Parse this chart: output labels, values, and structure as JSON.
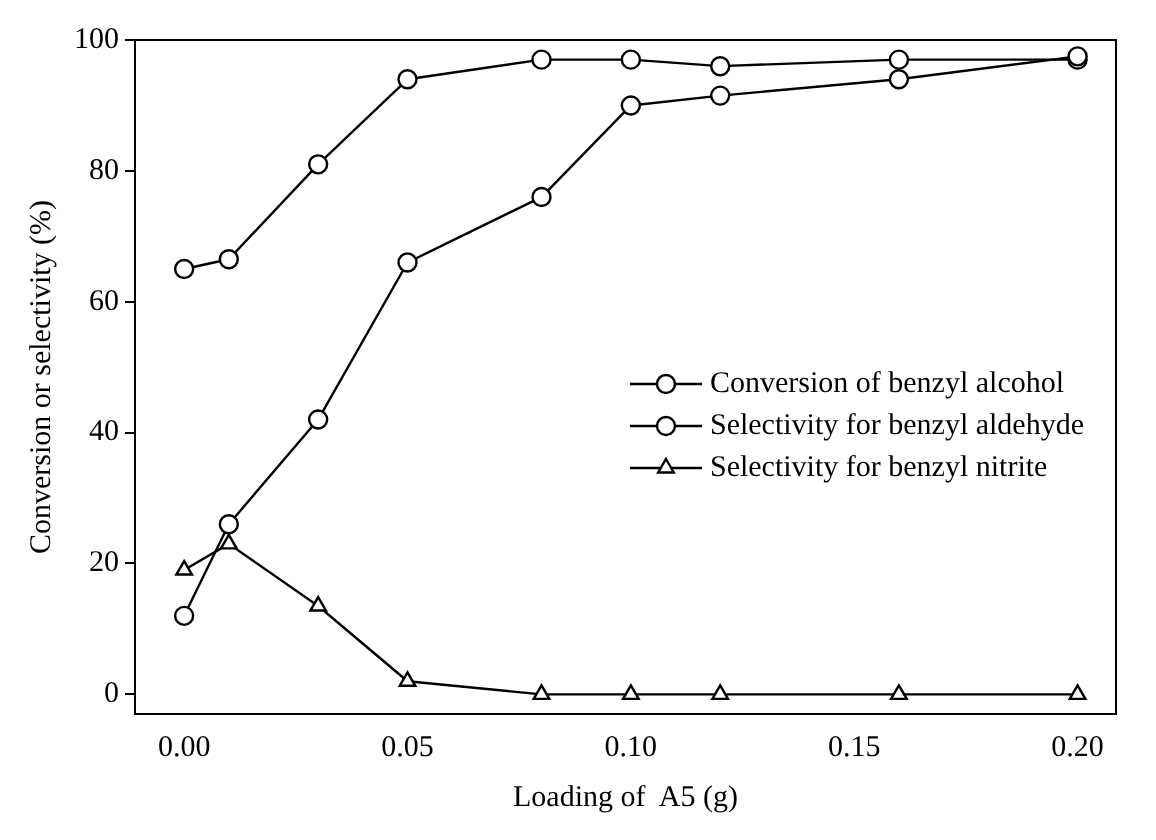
{
  "chart_data": {
    "type": "line",
    "xlabel": "Loading of  A5 (g)",
    "ylabel": "Conversion or selectivity (%)",
    "x": [
      0,
      0.01,
      0.03,
      0.05,
      0.08,
      0.1,
      0.12,
      0.16,
      0.2
    ],
    "xlim": [
      -0.011,
      0.2086
    ],
    "xticks": [
      {
        "value": 0,
        "label": "0.00"
      },
      {
        "value": 0.05,
        "label": "0.05"
      },
      {
        "value": 0.1,
        "label": "0.10"
      },
      {
        "value": 0.15,
        "label": "0.15"
      },
      {
        "value": 0.2,
        "label": "0.20"
      }
    ],
    "ylim": [
      -3,
      100
    ],
    "yticks": [
      0,
      20,
      40,
      60,
      80,
      100
    ],
    "grid": false,
    "legend": "right",
    "line_style": "solid",
    "series": [
      {
        "name": "Conversion of benzyl alcohol",
        "color": "#000000",
        "marker": "circle",
        "values": [
          12,
          26,
          42,
          66,
          76,
          90,
          91.5,
          94,
          97.5
        ]
      },
      {
        "name": "Selectivity for benzyl aldehyde",
        "color": "#000000",
        "marker": "circle",
        "values": [
          65,
          66.5,
          81,
          94,
          97,
          97,
          96,
          97,
          97
        ]
      },
      {
        "name": "Selectivity for benzyl nitrite",
        "color": "#000000",
        "marker": "triangle",
        "values": [
          19,
          23,
          13.5,
          2,
          0,
          0,
          0,
          0,
          0
        ]
      }
    ]
  }
}
